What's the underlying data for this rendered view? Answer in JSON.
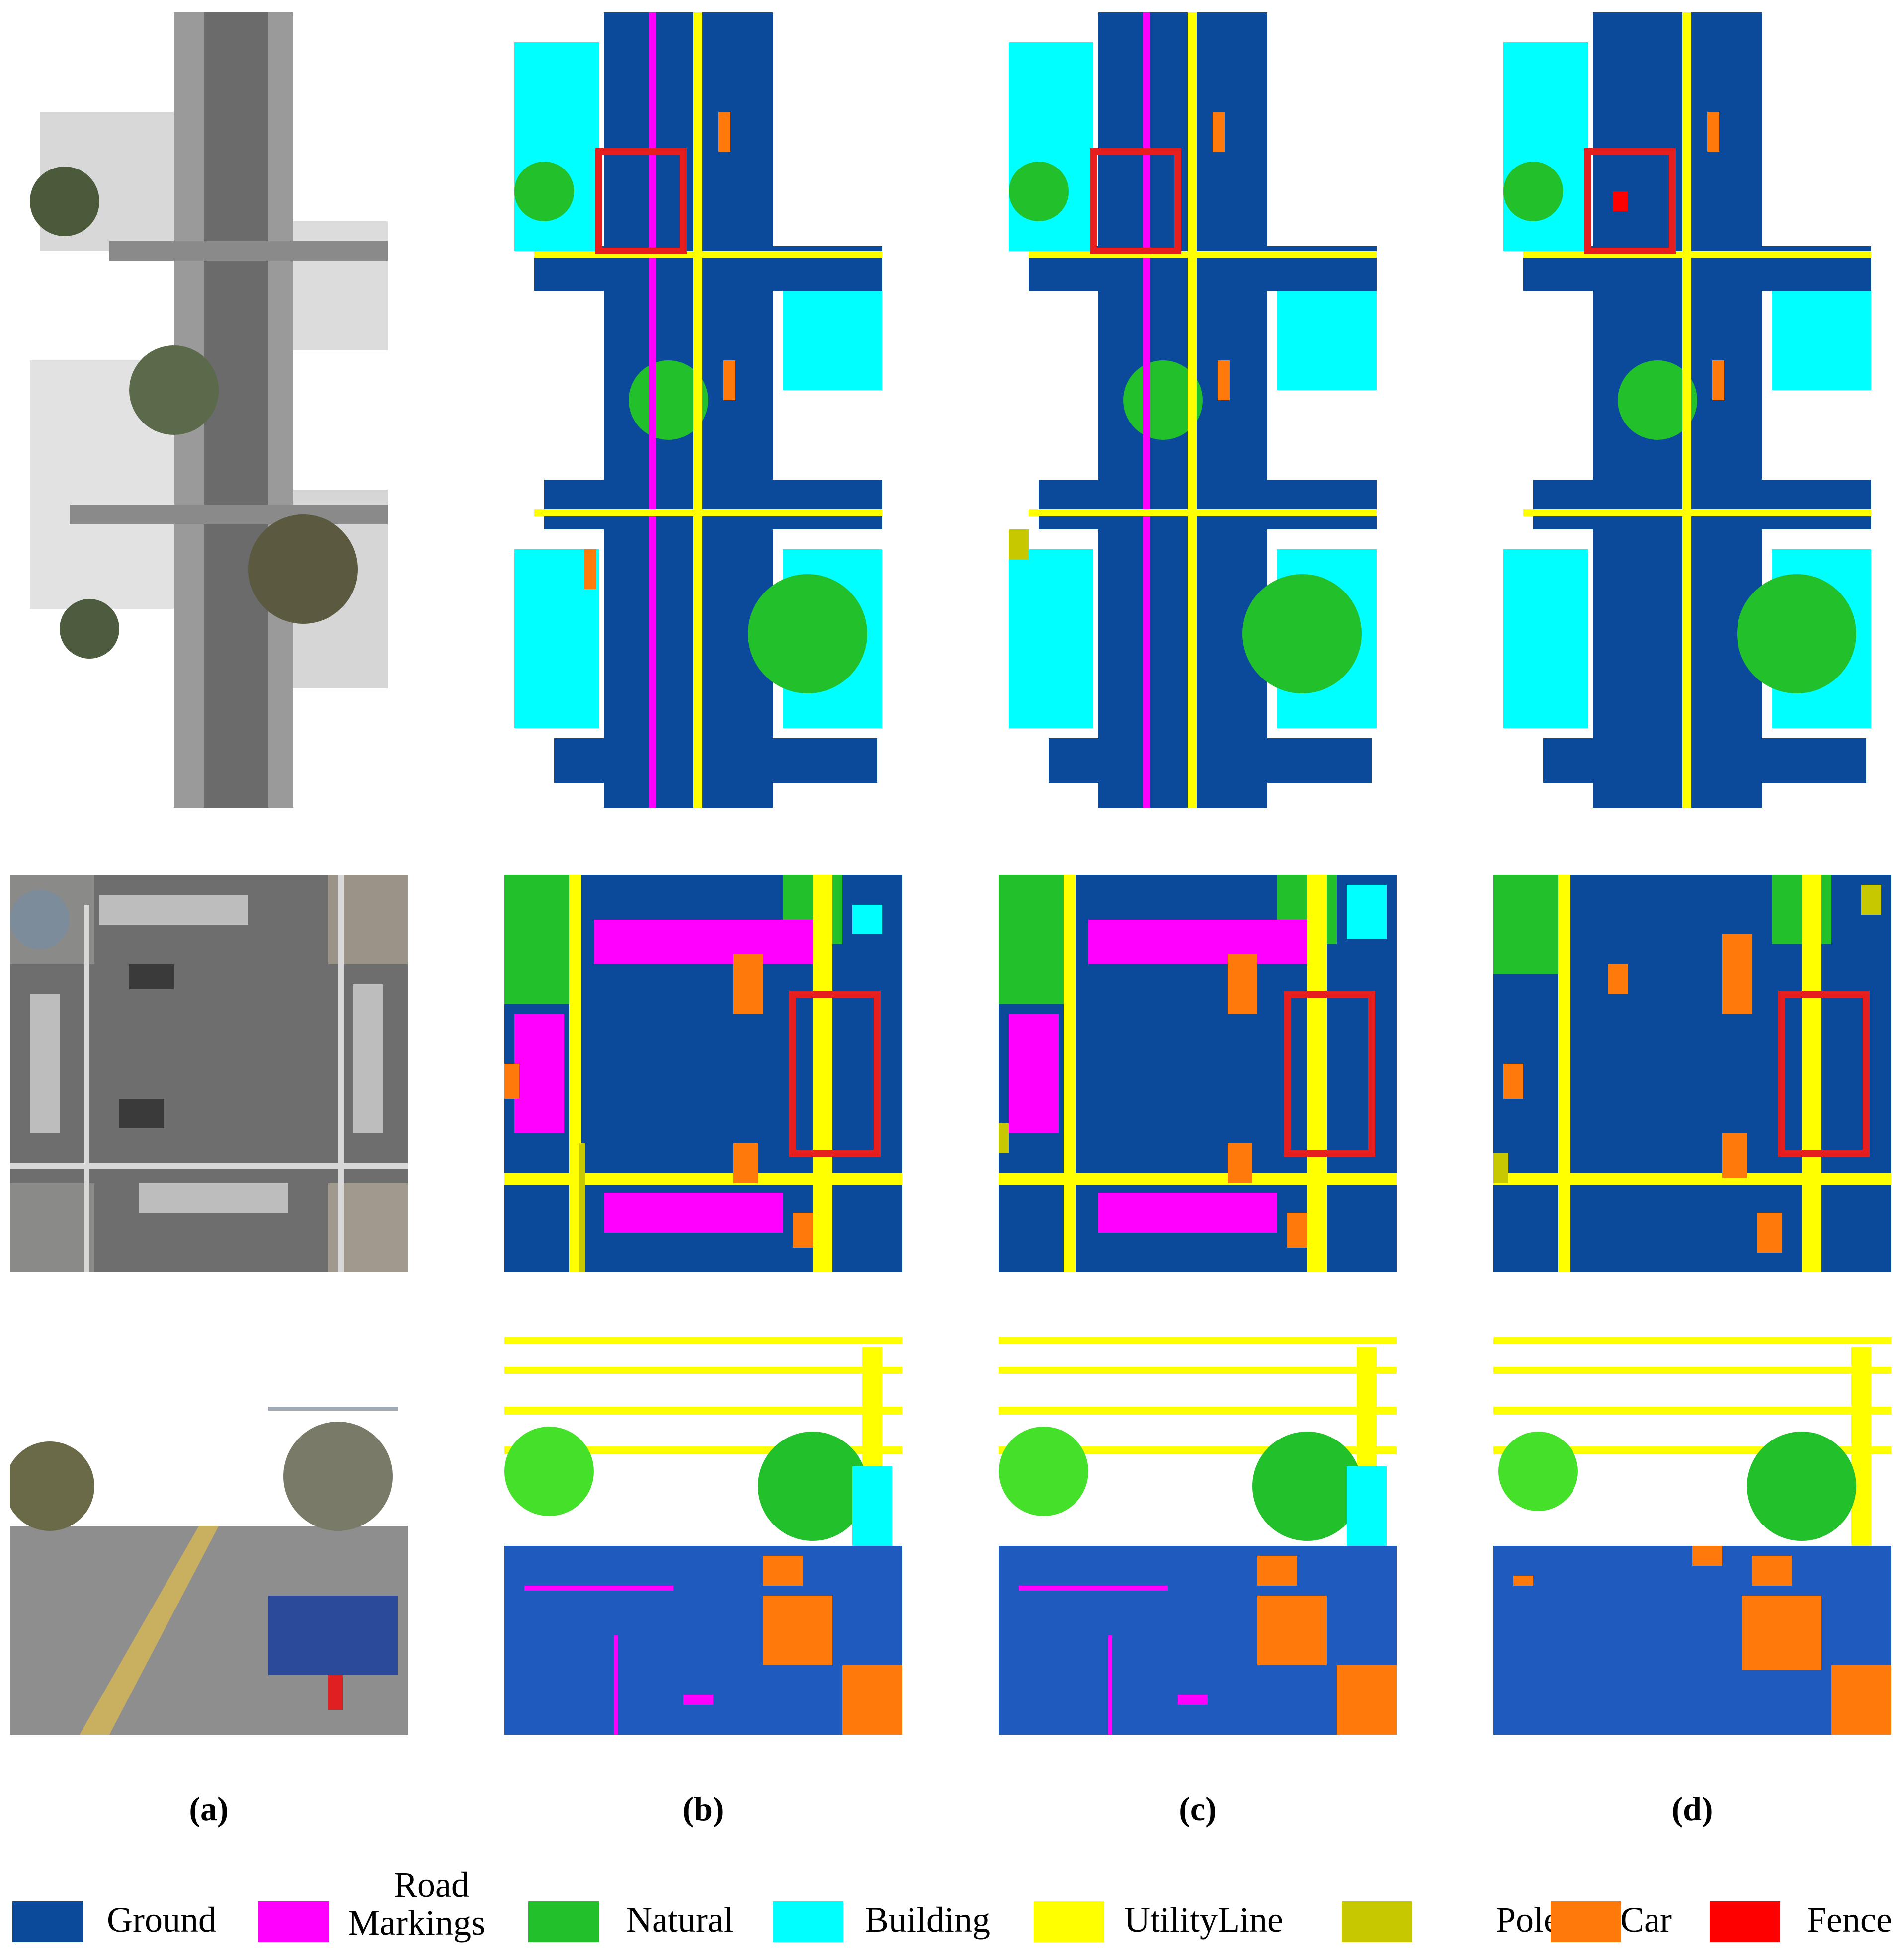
{
  "columns": [
    {
      "label": "(a)"
    },
    {
      "label": "(b)"
    },
    {
      "label": "(c)"
    },
    {
      "label": "(d)"
    }
  ],
  "legend": [
    {
      "label": "Ground",
      "color": "#0b4a9a"
    },
    {
      "label": "Road Markings",
      "line1": "Road",
      "line2": "Markings",
      "color": "#ff00ff"
    },
    {
      "label": "Natural",
      "color": "#22c02a"
    },
    {
      "label": "Building",
      "color": "#00ffff"
    },
    {
      "label": "UtilityLine",
      "color": "#ffff00"
    },
    {
      "label": "Pole",
      "color": "#c8c800"
    },
    {
      "label": "Car",
      "color": "#ff7a0a"
    },
    {
      "label": "Fence",
      "color": "#ff0000"
    }
  ],
  "highlight_color": "#e61e1e"
}
